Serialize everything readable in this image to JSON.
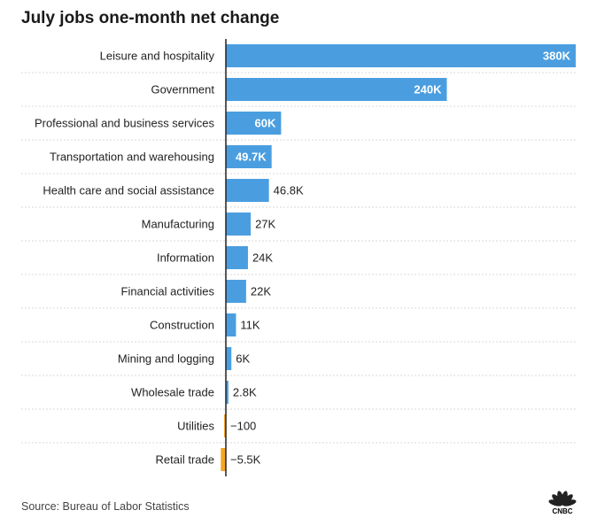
{
  "title": "July jobs one-month net change",
  "source": "Source: Bureau of Labor Statistics",
  "logo_text": "CNBC",
  "colors": {
    "positive": "#4a9ee0",
    "negative": "#f5a623",
    "axis": "#222222",
    "grid": "#d9d9d9",
    "logo": "#222222"
  },
  "chart_data": {
    "type": "bar",
    "orientation": "horizontal",
    "title": "July jobs one-month net change",
    "categories": [
      "Leisure and hospitality",
      "Government",
      "Professional and business services",
      "Transportation and warehousing",
      "Health care and social assistance",
      "Manufacturing",
      "Information",
      "Financial activities",
      "Construction",
      "Mining and logging",
      "Wholesale trade",
      "Utilities",
      "Retail trade"
    ],
    "values": [
      380000,
      240000,
      60000,
      49700,
      46800,
      27000,
      24000,
      22000,
      11000,
      6000,
      2800,
      -100,
      -5500
    ],
    "value_labels": [
      "380K",
      "240K",
      "60K",
      "49.7K",
      "46.8K",
      "27K",
      "24K",
      "22K",
      "11K",
      "6K",
      "2.8K",
      "−100",
      "−5.5K"
    ],
    "xlim": [
      0,
      380000
    ]
  }
}
